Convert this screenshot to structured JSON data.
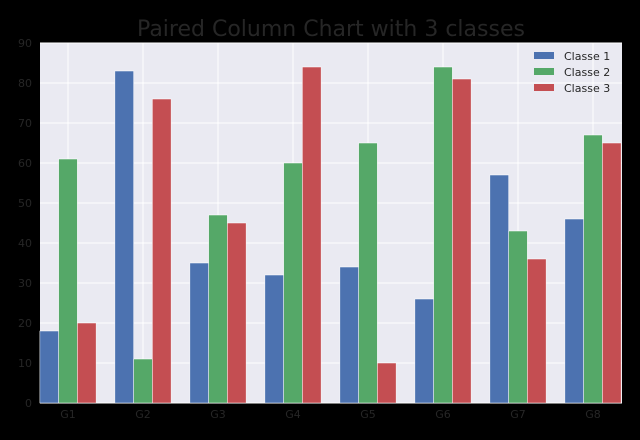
{
  "chart_data": {
    "type": "bar",
    "title": "Paired Column Chart with 3 classes",
    "xlabel": "",
    "ylabel": "",
    "categories": [
      "G1",
      "G2",
      "G3",
      "G4",
      "G5",
      "G6",
      "G7",
      "G8"
    ],
    "series": [
      {
        "name": "Classe 1",
        "color": "#4C72B0",
        "values": [
          18,
          83,
          35,
          32,
          34,
          26,
          57,
          46
        ]
      },
      {
        "name": "Classe 2",
        "color": "#55A868",
        "values": [
          61,
          11,
          47,
          60,
          65,
          84,
          43,
          67
        ]
      },
      {
        "name": "Classe 3",
        "color": "#C44E52",
        "values": [
          20,
          76,
          45,
          84,
          10,
          81,
          36,
          65
        ]
      }
    ],
    "ylim": [
      0,
      90
    ],
    "yticks": [
      0,
      10,
      20,
      30,
      40,
      50,
      60,
      70,
      80,
      90
    ],
    "grid": true,
    "legend_position": "top-right",
    "colors": {
      "background": "#000000",
      "plot_background": "#EAEAF2",
      "grid": "#FFFFFF",
      "text": "#262626"
    }
  }
}
